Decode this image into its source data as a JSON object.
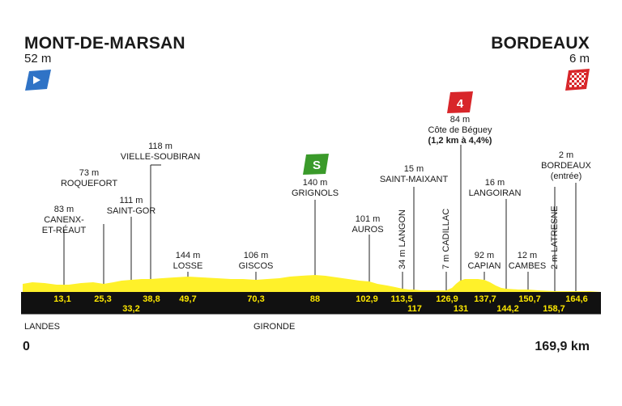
{
  "start": {
    "name": "MONT-DE-MARSAN",
    "altitude": "52 m"
  },
  "finish": {
    "name": "BORDEAUX",
    "altitude": "6 m"
  },
  "distance_start": "0",
  "distance_total": "169,9 km",
  "regions": [
    "LANDES",
    "GIRONDE"
  ],
  "sprint": {
    "symbol": "S",
    "color": "#3a9a2a",
    "name": "GRIGNOLS",
    "altitude": "140 m"
  },
  "climb": {
    "category": "4",
    "color": "#d8262a",
    "altitude": "84 m",
    "name": "Côte de Béguey",
    "detail": "(1,2 km à 4,4%)"
  },
  "waypoints": {
    "canenx": {
      "alt": "83 m",
      "name_1": "CANENX-",
      "name_2": "ET-RÉAUT"
    },
    "roquefort": {
      "alt": "73 m",
      "name": "ROQUEFORT"
    },
    "saintgor": {
      "alt": "111 m",
      "name": "SAINT-GOR"
    },
    "vielle": {
      "alt": "118 m",
      "name": "VIELLE-SOUBIRAN"
    },
    "losse": {
      "alt": "144 m",
      "name": "LOSSE"
    },
    "giscos": {
      "alt": "106 m",
      "name": "GISCOS"
    },
    "auros": {
      "alt": "101 m",
      "name": "AUROS"
    },
    "langon": "34 m LANGON",
    "saintmaixant": {
      "alt": "15 m",
      "name": "SAINT-MAIXANT"
    },
    "cadillac": "7 m CADILLAC",
    "capian": {
      "alt": "92 m",
      "name": "CAPIAN"
    },
    "langoiran": {
      "alt": "16 m",
      "name": "LANGOIRAN"
    },
    "cambes": {
      "alt": "12 m",
      "name": "CAMBES"
    },
    "latresne": "2 m LATRESNE",
    "bordeaux_entree": {
      "alt": "2 m",
      "name": "BORDEAUX",
      "sub": "(entrée)"
    }
  },
  "km_top": [
    "13,1",
    "25,3",
    "38,8",
    "49,7",
    "70,3",
    "88",
    "102,9",
    "113,5",
    "126,9",
    "137,7",
    "150,7",
    "164,6"
  ],
  "km_bottom": [
    "33,2",
    "117",
    "131",
    "144,2",
    "158,7"
  ],
  "colors": {
    "profile": "#fff12a",
    "band": "#111111",
    "km_text": "#ffe900",
    "start_flag": "#2f73c6",
    "finish_flag": "#d8262a"
  },
  "icons": [
    "start-flag-icon",
    "finish-flag-icon",
    "sprint-badge-icon",
    "climb-badge-icon"
  ]
}
